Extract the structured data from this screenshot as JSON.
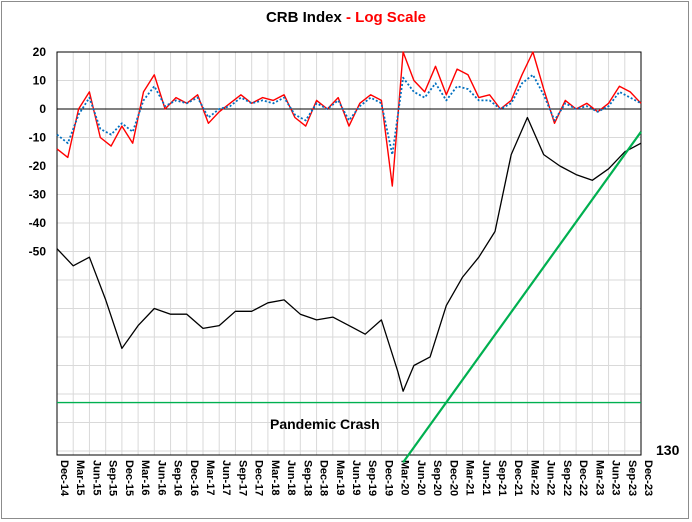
{
  "chart_data": {
    "type": "line",
    "title": "CRB Index",
    "title_separator": " - ",
    "subtitle": "Log Scale",
    "y_ticks": [
      "20",
      "10",
      "0",
      "-10",
      "-20",
      "-30",
      "-40",
      "-50"
    ],
    "oscillator_ylim": [
      -50,
      20
    ],
    "x_ticks": [
      "Dec-14",
      "Mar-15",
      "Jun-15",
      "Sep-15",
      "Dec-15",
      "Mar-16",
      "Jun-16",
      "Sep-16",
      "Dec-16",
      "Mar-17",
      "Jun-17",
      "Sep-17",
      "Dec-17",
      "Mar-18",
      "Jun-18",
      "Sep-18",
      "Dec-18",
      "Mar-19",
      "Jun-19",
      "Sep-19",
      "Dec-19",
      "Mar-20",
      "Jun-20",
      "Sep-20",
      "Dec-20",
      "Mar-21",
      "Jun-21",
      "Sep-21",
      "Dec-21",
      "Mar-22",
      "Jun-22",
      "Sep-22",
      "Dec-22",
      "Mar-23",
      "Jun-23",
      "Sep-23",
      "Dec-23"
    ],
    "annotations": {
      "crash_label": "Pandemic Crash",
      "floor_label": "130"
    },
    "colors": {
      "price": "#000000",
      "oscillator": "#ff0000",
      "signal": "#0070c0",
      "trendlines": "#00b050",
      "zero_line": "#000000"
    },
    "grid": true,
    "series": [
      {
        "name": "",
        "role": "price",
        "x": [
          "Dec-14",
          "Mar-15",
          "Jun-15",
          "Sep-15",
          "Dec-15",
          "Mar-16",
          "Jun-16",
          "Sep-16",
          "Dec-16",
          "Mar-17",
          "Jun-17",
          "Sep-17",
          "Dec-17",
          "Mar-18",
          "Jun-18",
          "Sep-18",
          "Dec-18",
          "Mar-19",
          "Jun-19",
          "Sep-19",
          "Dec-19",
          "Mar-20",
          "Apr-20",
          "Jun-20",
          "Sep-20",
          "Dec-20",
          "Mar-21",
          "Jun-21",
          "Sep-21",
          "Dec-21",
          "Mar-22",
          "Jun-22",
          "Sep-22",
          "Dec-22",
          "Mar-23",
          "Jun-23",
          "Sep-23",
          "Dec-23"
        ],
        "values": [
          -49,
          -55,
          -52,
          -67,
          -84,
          -76,
          -70,
          -72,
          -72,
          -77,
          -76,
          -71,
          -71,
          -68,
          -67,
          -72,
          -74,
          -73,
          -76,
          -79,
          -74,
          -92,
          -99,
          -90,
          -87,
          -69,
          -59,
          -52,
          -43,
          -16,
          -3,
          -16,
          -20,
          -23,
          -25,
          -21,
          -15,
          -12
        ]
      },
      {
        "name": "",
        "role": "oscillator",
        "x": [
          "Dec-14",
          "Feb-15",
          "Apr-15",
          "Jun-15",
          "Aug-15",
          "Oct-15",
          "Dec-15",
          "Feb-16",
          "Apr-16",
          "Jun-16",
          "Aug-16",
          "Oct-16",
          "Dec-16",
          "Feb-17",
          "Apr-17",
          "Jun-17",
          "Aug-17",
          "Oct-17",
          "Dec-17",
          "Feb-18",
          "Apr-18",
          "Jun-18",
          "Aug-18",
          "Oct-18",
          "Dec-18",
          "Feb-19",
          "Apr-19",
          "Jun-19",
          "Aug-19",
          "Oct-19",
          "Dec-19",
          "Feb-20",
          "Apr-20",
          "Jun-20",
          "Aug-20",
          "Oct-20",
          "Dec-20",
          "Feb-21",
          "Apr-21",
          "Jun-21",
          "Aug-21",
          "Oct-21",
          "Dec-21",
          "Feb-22",
          "Apr-22",
          "Jun-22",
          "Aug-22",
          "Oct-22",
          "Dec-22",
          "Feb-23",
          "Apr-23",
          "Jun-23",
          "Aug-23",
          "Oct-23",
          "Dec-23"
        ],
        "values": [
          -14,
          -17,
          0,
          6,
          -10,
          -13,
          -6,
          -12,
          6,
          12,
          0,
          4,
          2,
          5,
          -5,
          -1,
          2,
          5,
          2,
          4,
          3,
          5,
          -3,
          -6,
          3,
          0,
          4,
          -6,
          2,
          5,
          3,
          -27,
          20,
          10,
          6,
          15,
          5,
          14,
          12,
          4,
          5,
          0,
          3,
          12,
          20,
          7,
          -5,
          3,
          0,
          2,
          -1,
          2,
          8,
          6,
          2
        ]
      },
      {
        "name": "",
        "role": "signal",
        "x": [
          "Dec-14",
          "Feb-15",
          "Apr-15",
          "Jun-15",
          "Aug-15",
          "Oct-15",
          "Dec-15",
          "Feb-16",
          "Apr-16",
          "Jun-16",
          "Aug-16",
          "Oct-16",
          "Dec-16",
          "Feb-17",
          "Apr-17",
          "Jun-17",
          "Aug-17",
          "Oct-17",
          "Dec-17",
          "Feb-18",
          "Apr-18",
          "Jun-18",
          "Aug-18",
          "Oct-18",
          "Dec-18",
          "Feb-19",
          "Apr-19",
          "Jun-19",
          "Aug-19",
          "Oct-19",
          "Dec-19",
          "Feb-20",
          "Apr-20",
          "Jun-20",
          "Aug-20",
          "Oct-20",
          "Dec-20",
          "Feb-21",
          "Apr-21",
          "Jun-21",
          "Aug-21",
          "Oct-21",
          "Dec-21",
          "Feb-22",
          "Apr-22",
          "Jun-22",
          "Aug-22",
          "Oct-22",
          "Dec-22",
          "Feb-23",
          "Apr-23",
          "Jun-23",
          "Aug-23",
          "Oct-23",
          "Dec-23"
        ],
        "values": [
          -9,
          -12,
          -2,
          4,
          -7,
          -9,
          -5,
          -8,
          3,
          8,
          1,
          3,
          2,
          4,
          -3,
          0,
          1,
          4,
          2,
          3,
          2,
          4,
          -2,
          -4,
          2,
          0,
          3,
          -4,
          1,
          4,
          2,
          -16,
          11,
          6,
          4,
          9,
          3,
          8,
          7,
          3,
          3,
          0,
          2,
          9,
          12,
          5,
          -4,
          2,
          0,
          1,
          -1,
          1,
          6,
          4,
          2
        ]
      },
      {
        "name": "",
        "role": "support",
        "x": [
          "Dec-14",
          "Dec-23"
        ],
        "values": [
          -103,
          -103
        ]
      },
      {
        "name": "",
        "role": "uptrend",
        "x": [
          "Apr-20",
          "Dec-23"
        ],
        "values": [
          -124,
          -8
        ]
      }
    ]
  }
}
